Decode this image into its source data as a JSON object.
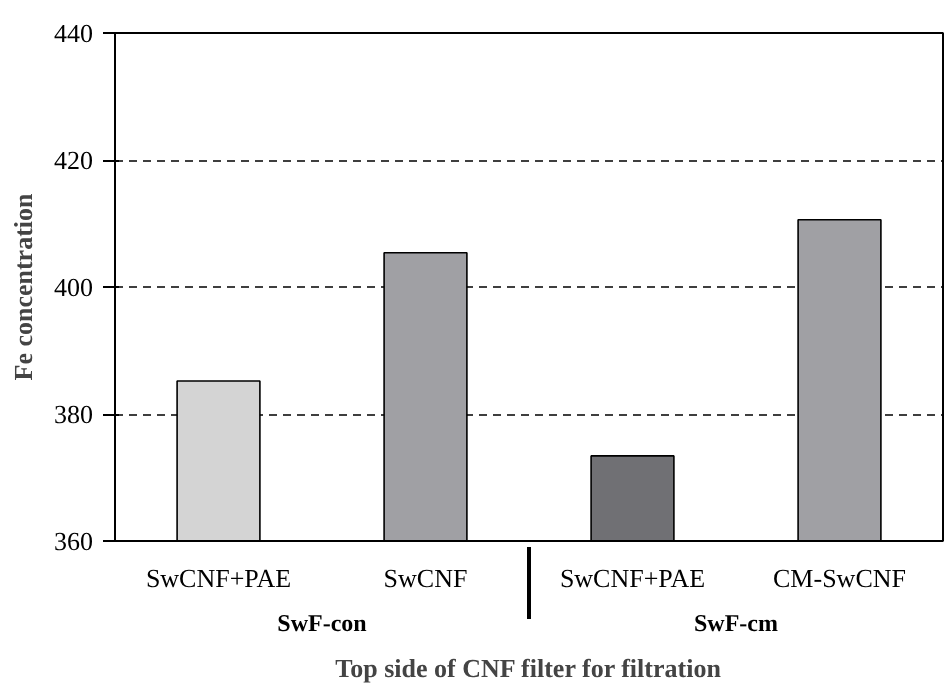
{
  "chart_data": {
    "type": "bar",
    "xlabel": "Top side of CNF filter for filtration",
    "ylabel": "Fe concentration",
    "categories": [
      "SwCNF+PAE",
      "SwCNF",
      "SwCNF+PAE",
      "CM-SwCNF"
    ],
    "values": [
      385.2,
      405.4,
      373.4,
      410.6
    ],
    "colors": [
      "#d4d4d4",
      "#a0a0a4",
      "#707074",
      "#a0a0a4"
    ],
    "annotations": [
      "SwF-con",
      "SwF-cm"
    ],
    "ylim": [
      360,
      440
    ],
    "yticks": [
      360,
      380,
      400,
      420,
      440
    ],
    "grid": "y"
  }
}
